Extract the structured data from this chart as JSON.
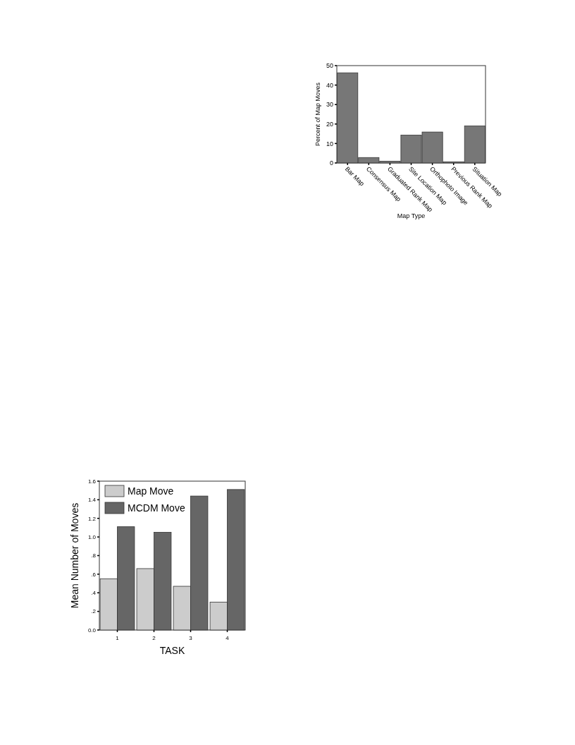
{
  "chart_data": [
    {
      "type": "bar",
      "xlabel": "Map Type",
      "ylabel": "Percent of Map Moves",
      "categories": [
        "Bar Map",
        "Consensus Map",
        "Graduated Rank Map",
        "Site Location Map",
        "Orthophoto Image",
        "Previous Rank Map",
        "Situation Map"
      ],
      "values": [
        46.3,
        2.8,
        0.9,
        14.3,
        15.9,
        0.6,
        19.0
      ],
      "color": "#777777",
      "ylim": [
        0,
        50
      ],
      "yticks": [
        0,
        10,
        20,
        30,
        40,
        50
      ],
      "grid": false,
      "legend": false
    },
    {
      "type": "bar",
      "xlabel": "TASK",
      "ylabel": "Mean Number of Moves",
      "categories": [
        "1",
        "2",
        "3",
        "4"
      ],
      "series": [
        {
          "name": "Map Move",
          "color": "#cccccc",
          "values": [
            0.55,
            0.66,
            0.47,
            0.3
          ]
        },
        {
          "name": "MCDM Move",
          "color": "#666666",
          "values": [
            1.11,
            1.05,
            1.44,
            1.51
          ]
        }
      ],
      "ylim": [
        0,
        1.6
      ],
      "yticks": [
        {
          "value": 0,
          "label": "0.0"
        },
        {
          "value": 0.2,
          "label": ".2"
        },
        {
          "value": 0.4,
          "label": ".4"
        },
        {
          "value": 0.6,
          "label": ".6"
        },
        {
          "value": 0.8,
          "label": ".8"
        },
        {
          "value": 1.0,
          "label": "1.0"
        },
        1.2,
        1.4,
        1.6
      ],
      "grid": false,
      "legend": "top left"
    }
  ]
}
